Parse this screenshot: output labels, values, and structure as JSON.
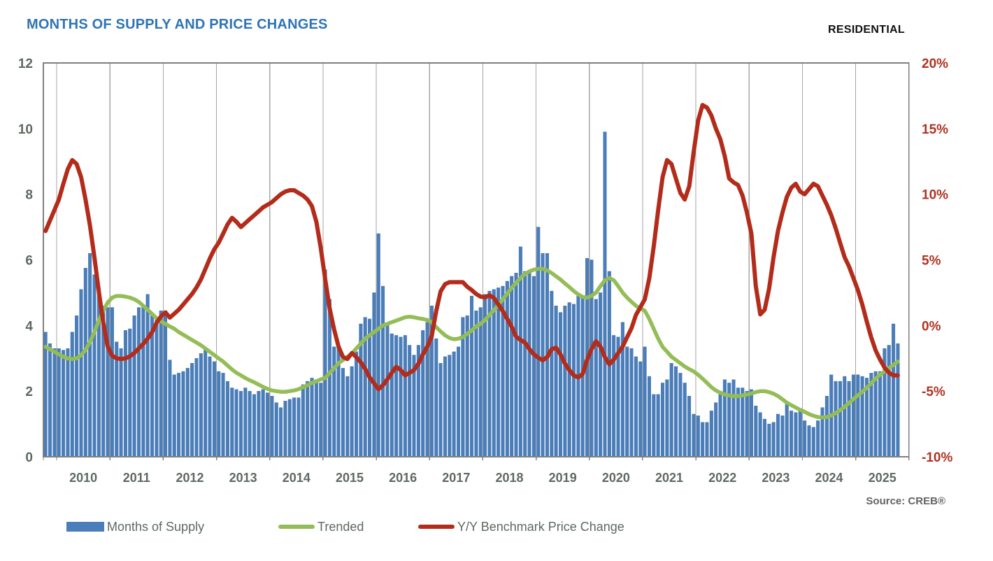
{
  "header": {
    "title": "MONTHS OF SUPPLY AND PRICE CHANGES",
    "category_label": "RESIDENTIAL"
  },
  "footer": {
    "source": "Source: CREB®"
  },
  "colors": {
    "bar_blue": "#4A7EBB",
    "bar_blue_edge": "#3C6DA6",
    "trended_green": "#94BD57",
    "price_red": "#B32C1B",
    "title_blue": "#2E74B5",
    "axis_text": "#5D6A60",
    "right_axis_text": "#AF3322",
    "gridline": "#A6A6A6",
    "plot_border": "#7F7F7F"
  },
  "legend": [
    {
      "label": "Months of Supply",
      "type": "bar",
      "color": "#4A7EBB",
      "x": 95
    },
    {
      "label": "Trended",
      "type": "line",
      "color": "#94BD57",
      "x": 398
    },
    {
      "label": "Y/Y Benchmark Price Change",
      "type": "line",
      "color": "#B32C1B",
      "x": 598
    }
  ],
  "chart_data": {
    "type": "bar",
    "subtype": "monthly bars with two overlay lines",
    "start_month": "2009-10",
    "end_month": "2025-10",
    "x_year_labels": [
      "2010",
      "2011",
      "2012",
      "2013",
      "2014",
      "2015",
      "2016",
      "2017",
      "2018",
      "2019",
      "2020",
      "2021",
      "2022",
      "2023",
      "2024",
      "2025"
    ],
    "left_axis": {
      "title": "",
      "min": 0,
      "max": 12,
      "step": 2,
      "ticks": [
        "0",
        "2",
        "4",
        "6",
        "8",
        "10",
        "12"
      ]
    },
    "right_axis": {
      "title": "",
      "min": -10,
      "max": 20,
      "step": 5,
      "ticks": [
        "-10%",
        "-5%",
        "0%",
        "5%",
        "10%",
        "15%",
        "20%"
      ]
    },
    "grid": "vertical year gridlines only",
    "legend_position": "bottom",
    "series": [
      {
        "name": "Months of Supply",
        "type": "bar",
        "axis": "left",
        "color": "#4A7EBB",
        "values": [
          3.8,
          3.45,
          3.3,
          3.3,
          3.25,
          3.3,
          3.8,
          4.3,
          5.1,
          5.75,
          6.2,
          5.55,
          5.15,
          4.6,
          4.55,
          4.55,
          3.5,
          3.3,
          3.85,
          3.9,
          4.3,
          4.55,
          4.6,
          4.95,
          4.35,
          4.25,
          4.45,
          4.45,
          2.95,
          2.5,
          2.55,
          2.6,
          2.7,
          2.85,
          3.0,
          3.15,
          3.25,
          3.05,
          2.9,
          2.6,
          2.55,
          2.3,
          2.1,
          2.05,
          2.0,
          2.1,
          2.0,
          1.9,
          2.0,
          2.05,
          1.95,
          1.85,
          1.65,
          1.5,
          1.7,
          1.75,
          1.8,
          1.8,
          2.2,
          2.3,
          2.4,
          2.35,
          2.25,
          5.7,
          4.8,
          3.35,
          3.35,
          2.7,
          2.45,
          2.75,
          3.2,
          4.05,
          4.25,
          4.2,
          5.0,
          6.8,
          5.2,
          4.0,
          3.75,
          3.7,
          3.65,
          3.7,
          3.4,
          3.1,
          3.4,
          3.85,
          4.1,
          4.6,
          3.6,
          2.85,
          3.05,
          3.1,
          3.2,
          3.35,
          4.25,
          4.3,
          4.9,
          4.45,
          4.55,
          4.95,
          5.05,
          5.1,
          5.15,
          5.2,
          5.35,
          5.5,
          5.6,
          6.4,
          5.65,
          5.6,
          5.5,
          7.0,
          6.2,
          6.2,
          5.05,
          4.6,
          4.4,
          4.6,
          4.7,
          4.65,
          4.9,
          4.85,
          6.05,
          6.0,
          4.8,
          5.0,
          9.9,
          5.65,
          3.7,
          3.65,
          4.1,
          3.35,
          3.3,
          3.05,
          2.9,
          3.35,
          2.45,
          1.9,
          1.9,
          2.25,
          2.35,
          2.85,
          2.75,
          2.55,
          2.25,
          1.85,
          1.3,
          1.25,
          1.05,
          1.05,
          1.4,
          1.65,
          2.0,
          2.35,
          2.25,
          2.35,
          2.1,
          2.1,
          2.0,
          2.05,
          1.55,
          1.35,
          1.15,
          1.0,
          1.05,
          1.3,
          1.25,
          1.65,
          1.4,
          1.35,
          1.45,
          1.1,
          0.95,
          0.9,
          1.1,
          1.5,
          1.85,
          2.5,
          2.3,
          2.3,
          2.45,
          2.3,
          2.5,
          2.5,
          2.45,
          2.4,
          2.55,
          2.6,
          2.6,
          3.3,
          3.4,
          4.05,
          3.45
        ]
      },
      {
        "name": "Trended",
        "type": "line",
        "axis": "left",
        "color": "#94BD57",
        "values": [
          3.35,
          3.28,
          3.2,
          3.12,
          3.05,
          3.0,
          2.98,
          3.0,
          3.1,
          3.25,
          3.5,
          3.8,
          4.15,
          4.45,
          4.7,
          4.85,
          4.9,
          4.9,
          4.88,
          4.85,
          4.8,
          4.72,
          4.6,
          4.48,
          4.35,
          4.22,
          4.12,
          4.05,
          3.97,
          3.9,
          3.8,
          3.72,
          3.64,
          3.56,
          3.48,
          3.4,
          3.3,
          3.2,
          3.1,
          3.0,
          2.9,
          2.78,
          2.66,
          2.56,
          2.48,
          2.4,
          2.33,
          2.27,
          2.2,
          2.13,
          2.07,
          2.02,
          2.0,
          1.98,
          1.98,
          2.0,
          2.02,
          2.06,
          2.12,
          2.18,
          2.25,
          2.3,
          2.36,
          2.4,
          2.55,
          2.7,
          2.85,
          2.95,
          3.05,
          3.15,
          3.3,
          3.45,
          3.6,
          3.7,
          3.8,
          3.9,
          4.0,
          4.05,
          4.1,
          4.15,
          4.2,
          4.25,
          4.27,
          4.25,
          4.22,
          4.2,
          4.17,
          4.1,
          3.95,
          3.82,
          3.7,
          3.62,
          3.58,
          3.6,
          3.65,
          3.75,
          3.85,
          3.97,
          4.05,
          4.17,
          4.32,
          4.47,
          4.62,
          4.8,
          4.97,
          5.15,
          5.3,
          5.45,
          5.57,
          5.65,
          5.7,
          5.73,
          5.73,
          5.68,
          5.6,
          5.5,
          5.4,
          5.28,
          5.17,
          5.05,
          4.95,
          4.87,
          4.85,
          4.9,
          5.0,
          5.2,
          5.38,
          5.45,
          5.38,
          5.2,
          5.0,
          4.85,
          4.72,
          4.6,
          4.52,
          4.45,
          4.2,
          3.9,
          3.6,
          3.35,
          3.2,
          3.05,
          2.95,
          2.85,
          2.75,
          2.67,
          2.6,
          2.5,
          2.38,
          2.25,
          2.12,
          2.02,
          1.95,
          1.9,
          1.87,
          1.85,
          1.85,
          1.87,
          1.9,
          1.93,
          1.97,
          2.0,
          2.0,
          1.97,
          1.92,
          1.85,
          1.75,
          1.65,
          1.57,
          1.5,
          1.43,
          1.37,
          1.3,
          1.25,
          1.21,
          1.2,
          1.21,
          1.26,
          1.33,
          1.42,
          1.52,
          1.64,
          1.76,
          1.87,
          1.98,
          2.1,
          2.24,
          2.38,
          2.5,
          2.6,
          2.7,
          2.8,
          2.9
        ]
      },
      {
        "name": "Y/Y Benchmark Price Change",
        "type": "line",
        "axis": "right",
        "unit": "%",
        "color": "#B32C1B",
        "values": [
          7.2,
          8.0,
          8.8,
          9.6,
          10.8,
          11.9,
          12.6,
          12.3,
          11.3,
          9.6,
          7.6,
          5.2,
          2.6,
          0.2,
          -1.6,
          -2.3,
          -2.5,
          -2.55,
          -2.5,
          -2.35,
          -2.1,
          -1.75,
          -1.4,
          -1.0,
          -0.5,
          0.2,
          0.7,
          1.0,
          0.6,
          0.9,
          1.2,
          1.6,
          2.0,
          2.4,
          2.9,
          3.5,
          4.3,
          5.1,
          5.8,
          6.3,
          7.0,
          7.7,
          8.2,
          7.9,
          7.5,
          7.8,
          8.1,
          8.4,
          8.7,
          9.0,
          9.2,
          9.4,
          9.7,
          10.0,
          10.2,
          10.3,
          10.3,
          10.1,
          9.9,
          9.6,
          9.1,
          7.9,
          5.9,
          3.5,
          1.3,
          -0.3,
          -1.6,
          -2.4,
          -2.55,
          -2.1,
          -2.4,
          -2.8,
          -3.3,
          -3.95,
          -4.4,
          -4.85,
          -4.55,
          -4.1,
          -3.6,
          -3.15,
          -3.4,
          -3.8,
          -3.6,
          -3.4,
          -2.9,
          -2.2,
          -1.6,
          -0.8,
          1.1,
          2.6,
          3.15,
          3.3,
          3.3,
          3.3,
          3.3,
          2.95,
          2.7,
          2.4,
          2.2,
          2.15,
          2.3,
          2.1,
          1.6,
          1.1,
          0.5,
          -0.1,
          -0.85,
          -1.1,
          -1.3,
          -1.8,
          -2.2,
          -2.45,
          -2.65,
          -2.4,
          -1.8,
          -1.7,
          -2.2,
          -2.9,
          -3.4,
          -3.8,
          -3.95,
          -3.7,
          -2.6,
          -1.8,
          -1.2,
          -1.6,
          -2.4,
          -2.95,
          -2.6,
          -2.1,
          -1.6,
          -0.9,
          -0.2,
          0.8,
          1.4,
          2.0,
          3.6,
          6.0,
          8.8,
          11.3,
          12.6,
          12.3,
          11.2,
          10.1,
          9.6,
          10.6,
          13.2,
          15.6,
          16.8,
          16.6,
          16.0,
          15.0,
          14.2,
          12.9,
          11.2,
          10.9,
          10.7,
          9.9,
          8.6,
          7.0,
          3.0,
          0.85,
          1.2,
          2.8,
          5.2,
          7.2,
          8.6,
          9.8,
          10.5,
          10.8,
          10.2,
          10.0,
          10.4,
          10.8,
          10.6,
          9.9,
          9.2,
          8.4,
          7.4,
          6.3,
          5.2,
          4.5,
          3.6,
          2.7,
          1.6,
          0.3,
          -0.9,
          -1.9,
          -2.6,
          -3.2,
          -3.6,
          -3.8,
          -3.8
        ]
      }
    ]
  }
}
